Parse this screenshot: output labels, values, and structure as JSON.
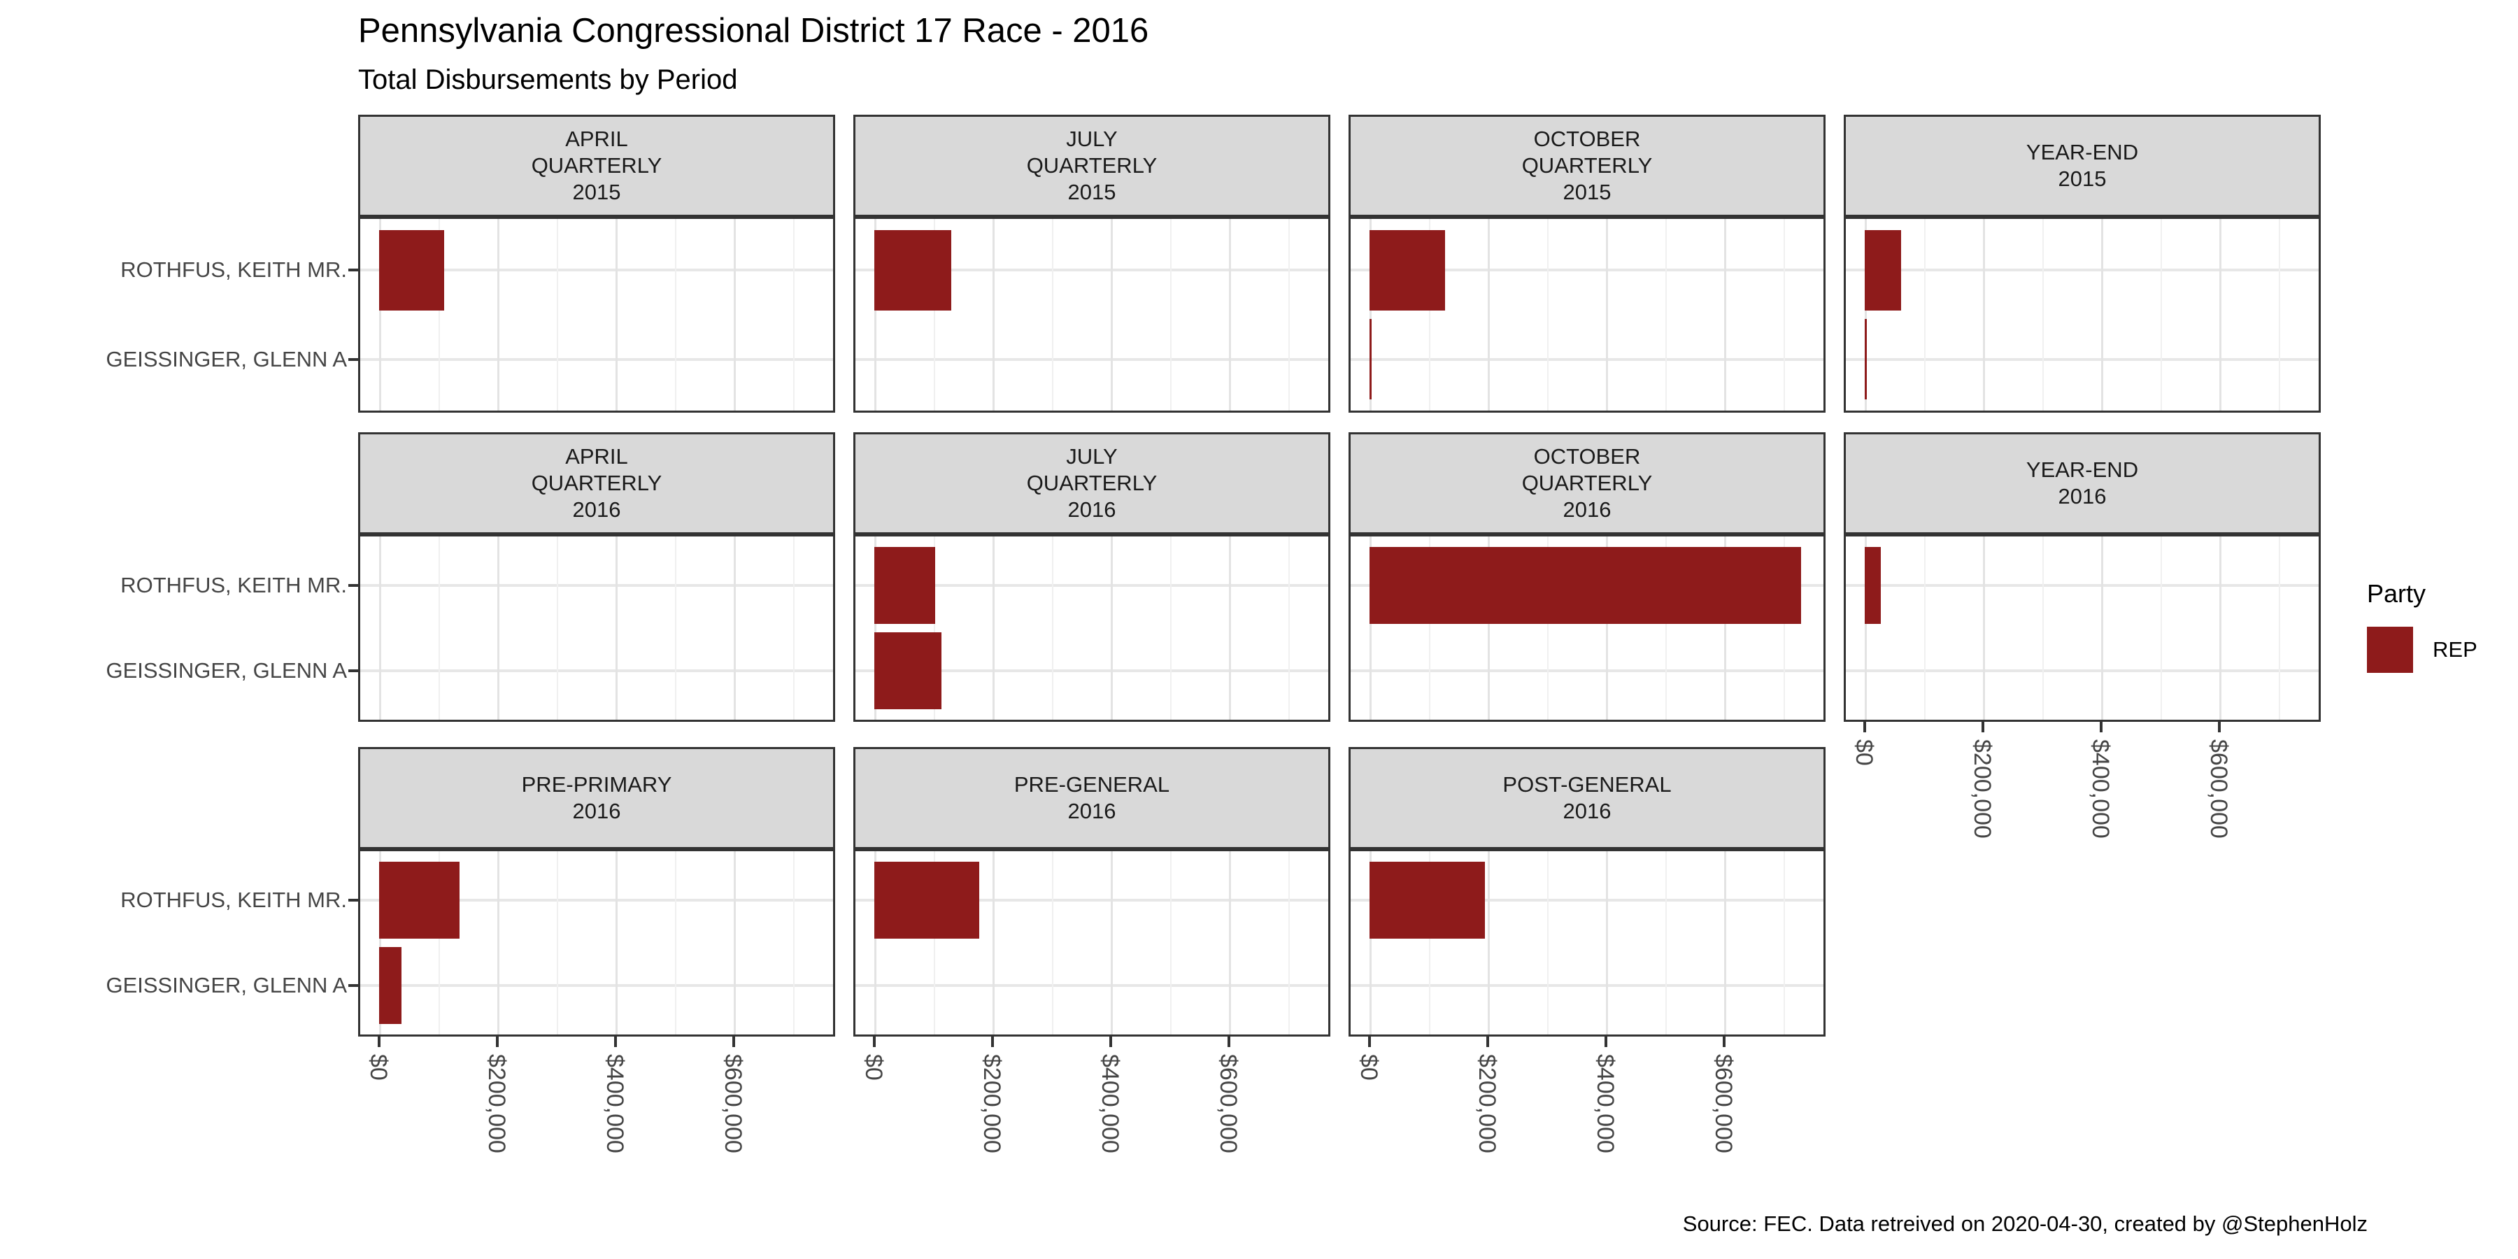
{
  "title": "Pennsylvania Congressional District 17 Race - 2016",
  "subtitle": "Total Disbursements by Period",
  "caption": "Source: FEC. Data retreived on 2020-04-30, created by @StephenHolz",
  "legend": {
    "title": "Party",
    "entries": [
      {
        "label": "REP",
        "color": "#8E1B1B"
      }
    ]
  },
  "colors": {
    "bar": "#8E1B1B",
    "strip_background": "#D9D9D9",
    "panel_border": "#333333",
    "grid_major": "#E3E3E3",
    "grid_minor": "#F0F0F0",
    "axis_text": "#454545"
  },
  "chart_data": {
    "type": "bar",
    "orientation": "horizontal",
    "title": "Pennsylvania Congressional District 17 Race - 2016",
    "subtitle": "Total Disbursements by Period",
    "caption": "Source: FEC. Data retreived on 2020-04-30, created by @StephenHolz",
    "legend_position": "right",
    "legend_title": "Party",
    "series_party": "REP",
    "categories": [
      "ROTHFUS, KEITH MR.",
      "GEISSINGER, GLENN A"
    ],
    "category_party": [
      "REP",
      "REP"
    ],
    "x_axis": {
      "tick_labels": [
        "$0",
        "$200,000",
        "$400,000",
        "$600,000"
      ],
      "tick_values": [
        0,
        200000,
        400000,
        600000
      ],
      "minor_step": 100000,
      "xlim": [
        0,
        770000
      ],
      "grid": true
    },
    "facet_grid_rows": [
      4,
      4,
      3
    ],
    "facets": [
      {
        "label_lines": [
          "APRIL",
          "QUARTERLY",
          "2015"
        ],
        "values": [
          110000,
          null
        ]
      },
      {
        "label_lines": [
          "JULY",
          "QUARTERLY",
          "2015"
        ],
        "values": [
          130000,
          null
        ]
      },
      {
        "label_lines": [
          "OCTOBER",
          "QUARTERLY",
          "2015"
        ],
        "values": [
          128000,
          3000
        ]
      },
      {
        "label_lines": [
          "YEAR-END",
          "2015"
        ],
        "values": [
          62000,
          3500
        ]
      },
      {
        "label_lines": [
          "APRIL",
          "QUARTERLY",
          "2016"
        ],
        "values": [
          null,
          null
        ]
      },
      {
        "label_lines": [
          "JULY",
          "QUARTERLY",
          "2016"
        ],
        "values": [
          103000,
          114000
        ]
      },
      {
        "label_lines": [
          "OCTOBER",
          "QUARTERLY",
          "2016"
        ],
        "values": [
          730000,
          null
        ]
      },
      {
        "label_lines": [
          "YEAR-END",
          "2016"
        ],
        "values": [
          27000,
          null
        ]
      },
      {
        "label_lines": [
          "PRE-PRIMARY",
          "2016"
        ],
        "values": [
          136000,
          38000
        ]
      },
      {
        "label_lines": [
          "PRE-GENERAL",
          "2016"
        ],
        "values": [
          177000,
          null
        ]
      },
      {
        "label_lines": [
          "POST-GENERAL",
          "2016"
        ],
        "values": [
          195000,
          null
        ]
      }
    ]
  }
}
